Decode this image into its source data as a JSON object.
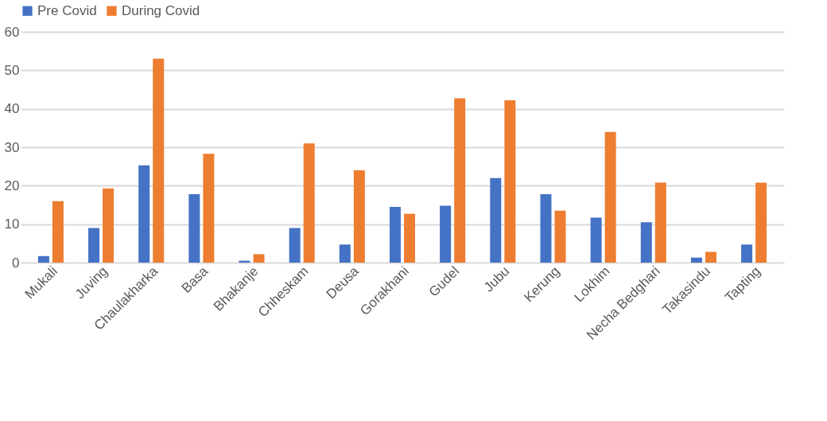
{
  "chart_data": {
    "type": "bar",
    "categories": [
      "Mukali",
      "Juving",
      "Chaulakharka",
      "Basa",
      "Bhakanje",
      "Chheskam",
      "Deusa",
      "Gorakhani",
      "Gudel",
      "Jubu",
      "Kerung",
      "Lokhim",
      "Necha Bedghari",
      "Takasindu",
      "Tapting"
    ],
    "series": [
      {
        "name": "Pre Covid",
        "color": "#4472c4",
        "values": [
          1.7,
          9,
          25.3,
          17.8,
          0.5,
          9,
          4.7,
          14.5,
          14.8,
          22,
          17.8,
          11.7,
          10.5,
          1.3,
          4.7
        ]
      },
      {
        "name": "During Covid",
        "color": "#ed7d31",
        "values": [
          16,
          19.3,
          53,
          28.3,
          2.2,
          31,
          24,
          12.7,
          42.7,
          42.2,
          13.5,
          34,
          20.8,
          2.8,
          20.8
        ]
      }
    ],
    "ylim": [
      0,
      60
    ],
    "yticks": [
      0,
      10,
      20,
      30,
      40,
      50,
      60
    ],
    "grid": "y",
    "legend": "top"
  }
}
